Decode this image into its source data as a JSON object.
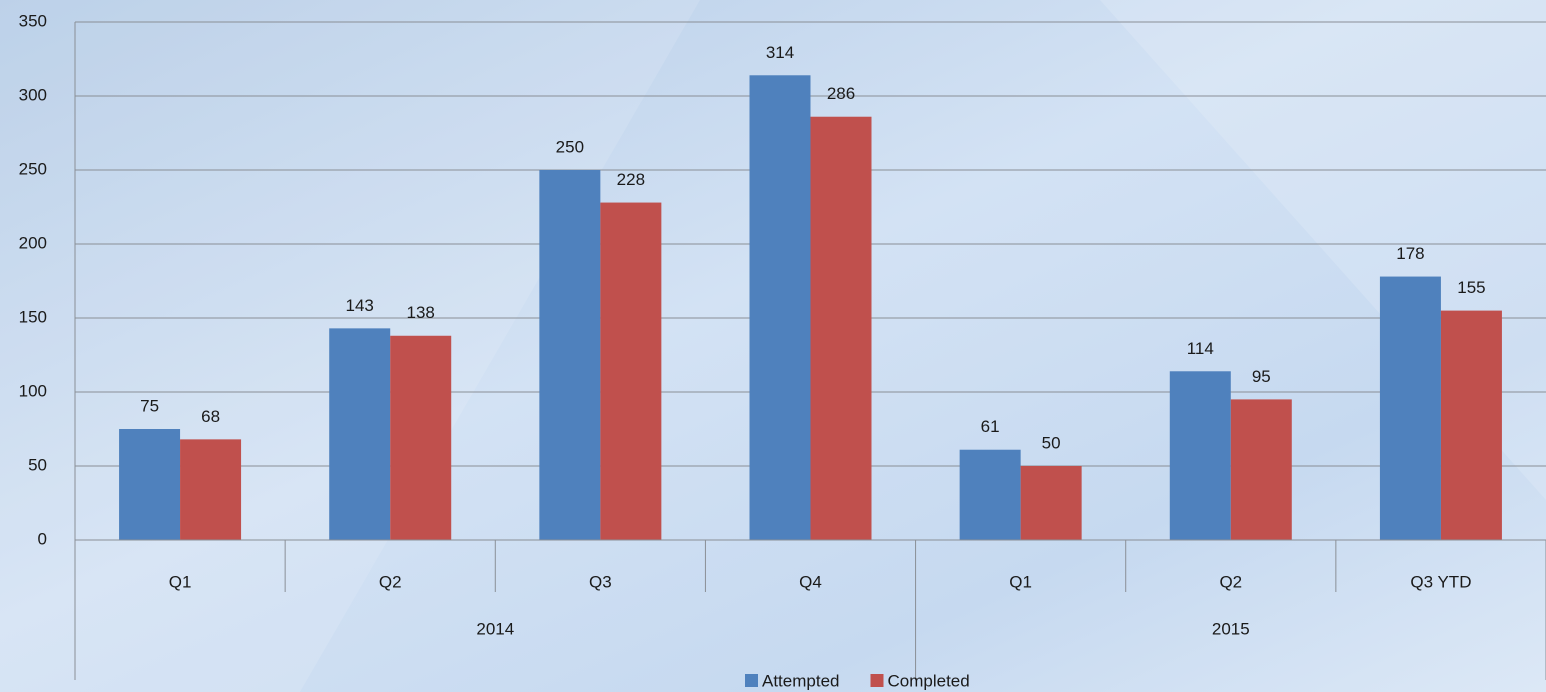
{
  "chart_data": {
    "type": "bar",
    "categories": [
      "Q1",
      "Q2",
      "Q3",
      "Q4",
      "Q1",
      "Q2",
      "Q3 YTD"
    ],
    "category_groups": [
      "2014",
      "2014",
      "2014",
      "2014",
      "2015",
      "2015",
      "2015"
    ],
    "series": [
      {
        "name": "Attempted",
        "color": "#4f81bd",
        "values": [
          75,
          143,
          250,
          314,
          61,
          114,
          178
        ]
      },
      {
        "name": "Completed",
        "color": "#c0504d",
        "values": [
          68,
          138,
          228,
          286,
          50,
          95,
          155
        ]
      }
    ],
    "ylim": [
      0,
      350
    ],
    "yticks": [
      0,
      50,
      100,
      150,
      200,
      250,
      300,
      350
    ],
    "grid": true,
    "legend": "bottom"
  }
}
